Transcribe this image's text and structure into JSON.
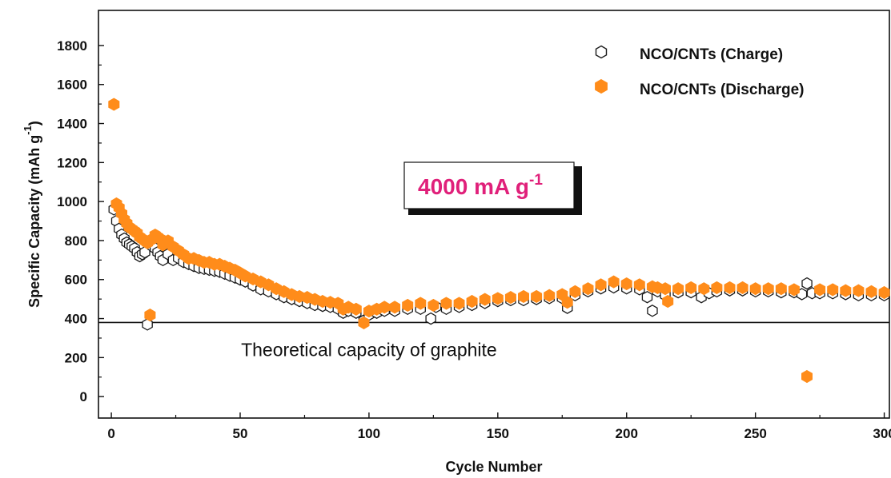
{
  "chart_data": {
    "type": "scatter",
    "xlabel": "Cycle Number",
    "ylabel": "Specific Capacity (mAh g",
    "ylabel_sup": "-1",
    "ylabel_close": ")",
    "xlim": [
      -5,
      302
    ],
    "ylim": [
      -110,
      1980
    ],
    "xticks": [
      0,
      50,
      100,
      150,
      200,
      250,
      300
    ],
    "yticks": [
      0,
      200,
      400,
      600,
      800,
      1000,
      1200,
      1400,
      1600,
      1800
    ],
    "legend_position": "top-right",
    "colors": {
      "charge_edge": "#1a1a1a",
      "discharge_fill": "#ff8c1a",
      "rate_text": "#e0207a"
    },
    "reference_line": {
      "y": 380,
      "label": "Theoretical capacity of graphite"
    },
    "rate_annotation": {
      "main": "4000 mA g",
      "sup": "-1"
    },
    "series": [
      {
        "name": "NCO/CNTs (Charge)",
        "marker": "hexagon-open",
        "x": [
          1,
          2,
          3,
          4,
          5,
          6,
          7,
          8,
          9,
          10,
          11,
          12,
          13,
          14,
          15,
          16,
          17,
          18,
          19,
          20,
          22,
          24,
          26,
          28,
          30,
          32,
          34,
          36,
          38,
          40,
          42,
          44,
          46,
          48,
          50,
          52,
          55,
          58,
          61,
          64,
          67,
          70,
          73,
          76,
          79,
          82,
          85,
          88,
          90,
          92,
          95,
          98,
          100,
          103,
          106,
          110,
          115,
          120,
          124,
          126,
          130,
          135,
          140,
          145,
          150,
          155,
          160,
          165,
          170,
          175,
          177,
          180,
          185,
          190,
          195,
          200,
          205,
          208,
          210,
          212,
          215,
          220,
          225,
          229,
          232,
          235,
          240,
          245,
          250,
          255,
          260,
          265,
          268,
          270,
          272,
          275,
          280,
          285,
          290,
          295,
          300
        ],
        "y": [
          960,
          900,
          860,
          830,
          810,
          790,
          780,
          770,
          760,
          740,
          720,
          730,
          740,
          370,
          780,
          770,
          760,
          740,
          720,
          700,
          730,
          700,
          710,
          690,
          680,
          670,
          660,
          655,
          650,
          645,
          640,
          630,
          620,
          610,
          600,
          590,
          570,
          550,
          540,
          525,
          510,
          500,
          490,
          480,
          470,
          465,
          460,
          450,
          430,
          440,
          430,
          390,
          420,
          430,
          440,
          440,
          450,
          450,
          400,
          460,
          450,
          460,
          470,
          480,
          490,
          495,
          495,
          500,
          505,
          505,
          455,
          520,
          540,
          555,
          560,
          555,
          550,
          510,
          440,
          540,
          520,
          535,
          535,
          510,
          530,
          540,
          545,
          545,
          540,
          540,
          535,
          535,
          525,
          580,
          530,
          530,
          530,
          525,
          520,
          520,
          520
        ]
      },
      {
        "name": "NCO/CNTs (Discharge)",
        "marker": "hexagon-filled",
        "x": [
          1,
          2,
          3,
          4,
          5,
          6,
          7,
          8,
          9,
          10,
          11,
          12,
          13,
          14,
          15,
          16,
          17,
          18,
          19,
          20,
          22,
          24,
          26,
          28,
          30,
          32,
          34,
          36,
          38,
          40,
          42,
          44,
          46,
          48,
          50,
          52,
          55,
          58,
          61,
          64,
          67,
          70,
          73,
          76,
          79,
          82,
          85,
          88,
          90,
          92,
          95,
          98,
          100,
          103,
          106,
          110,
          115,
          120,
          125,
          130,
          135,
          140,
          145,
          150,
          155,
          160,
          165,
          170,
          175,
          177,
          180,
          185,
          190,
          195,
          200,
          205,
          210,
          212,
          215,
          216,
          220,
          225,
          230,
          235,
          240,
          245,
          250,
          255,
          260,
          265,
          270,
          275,
          280,
          285,
          290,
          295,
          300
        ],
        "y": [
          1490,
          980,
          960,
          930,
          900,
          880,
          860,
          850,
          840,
          830,
          810,
          800,
          790,
          780,
          410,
          800,
          820,
          810,
          800,
          770,
          790,
          760,
          740,
          720,
          700,
          700,
          690,
          680,
          680,
          670,
          670,
          660,
          650,
          640,
          625,
          610,
          595,
          580,
          565,
          545,
          530,
          515,
          505,
          500,
          490,
          480,
          475,
          470,
          440,
          450,
          440,
          370,
          430,
          440,
          450,
          450,
          460,
          470,
          460,
          470,
          470,
          480,
          490,
          495,
          500,
          505,
          505,
          510,
          515,
          475,
          530,
          545,
          565,
          580,
          570,
          565,
          555,
          550,
          545,
          480,
          545,
          550,
          545,
          550,
          550,
          550,
          545,
          545,
          545,
          540,
          95,
          540,
          540,
          535,
          535,
          530,
          525
        ]
      }
    ]
  }
}
